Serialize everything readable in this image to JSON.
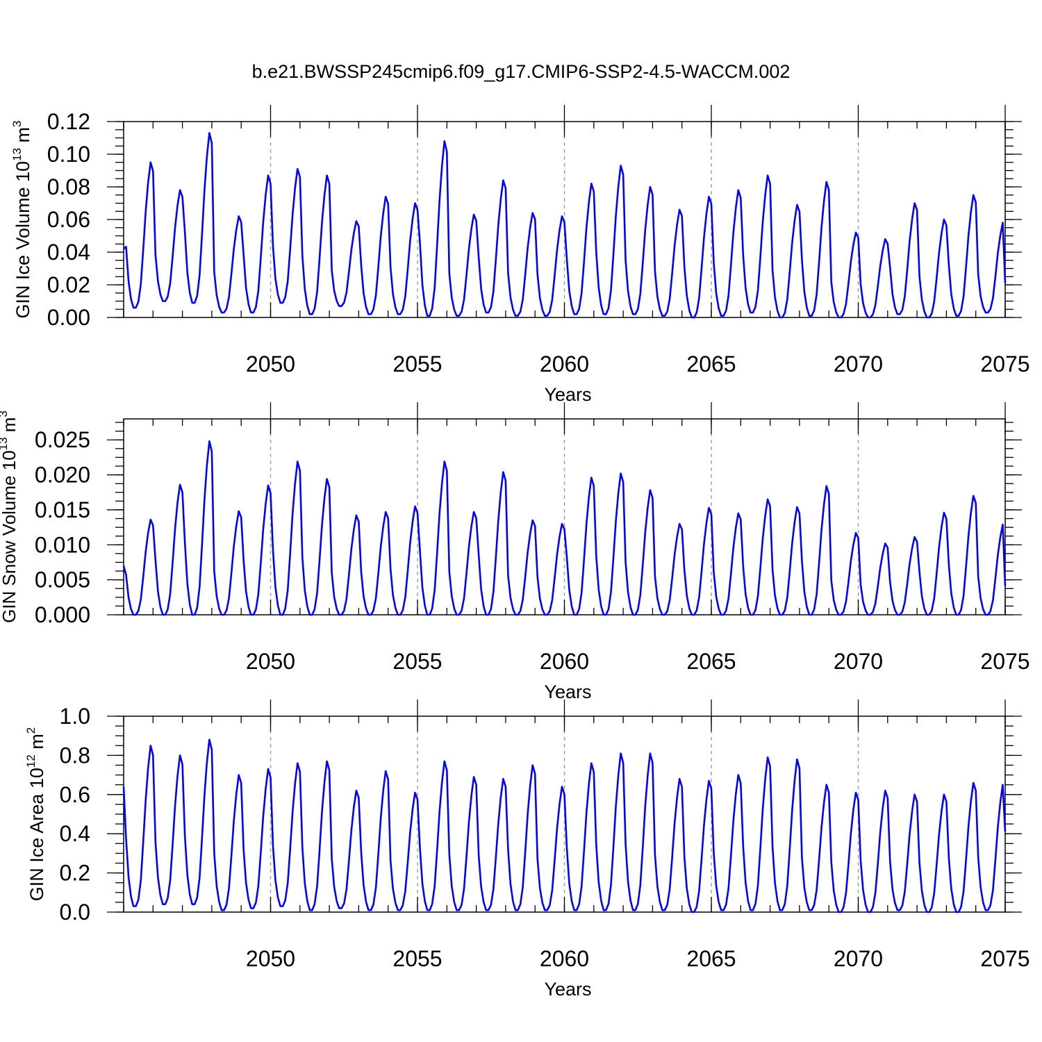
{
  "title": "b.e21.BWSSP245cmip6.f09_g17.CMIP6-SSP2-4.5-WACCM.002",
  "colors": {
    "series": "#0000ff",
    "grid": "#9a9a9a",
    "frame": "#000000"
  },
  "chart_data": [
    {
      "type": "line",
      "ylabel": "GIN Ice Volume 10",
      "ylabel_exp": "13",
      "ylabel_unit": " m",
      "ylabel_unit_exp": "3",
      "xlabel": "Years",
      "xlim": [
        2045.0,
        2075.0
      ],
      "ylim": [
        0.0,
        0.12
      ],
      "xticks": [
        2050,
        2055,
        2060,
        2065,
        2070,
        2075
      ],
      "xtick_labels": [
        "2050",
        "2055",
        "2060",
        "2065",
        "2070",
        "2075"
      ],
      "yticks": [
        0.0,
        0.02,
        0.04,
        0.06,
        0.08,
        0.1,
        0.12
      ],
      "ytick_labels": [
        "0.00",
        "0.02",
        "0.04",
        "0.06",
        "0.08",
        "0.10",
        "0.12"
      ],
      "vgrid": [
        2050,
        2055,
        2060,
        2065,
        2070
      ],
      "series_name": "GIN Ice Volume",
      "annual": [
        {
          "peak": 0.095,
          "min": 0.006
        },
        {
          "peak": 0.078,
          "min": 0.01
        },
        {
          "peak": 0.113,
          "min": 0.009
        },
        {
          "peak": 0.062,
          "min": 0.003
        },
        {
          "peak": 0.087,
          "min": 0.003
        },
        {
          "peak": 0.091,
          "min": 0.009
        },
        {
          "peak": 0.087,
          "min": 0.002
        },
        {
          "peak": 0.059,
          "min": 0.007
        },
        {
          "peak": 0.074,
          "min": 0.002
        },
        {
          "peak": 0.07,
          "min": 0.002
        },
        {
          "peak": 0.108,
          "min": 0.001
        },
        {
          "peak": 0.063,
          "min": 0.001
        },
        {
          "peak": 0.084,
          "min": 0.003
        },
        {
          "peak": 0.064,
          "min": 0.001
        },
        {
          "peak": 0.062,
          "min": 0.001
        },
        {
          "peak": 0.082,
          "min": 0.002
        },
        {
          "peak": 0.093,
          "min": 0.002
        },
        {
          "peak": 0.08,
          "min": 0.002
        },
        {
          "peak": 0.066,
          "min": 0.001
        },
        {
          "peak": 0.074,
          "min": 0.0
        },
        {
          "peak": 0.078,
          "min": 0.001
        },
        {
          "peak": 0.087,
          "min": 0.003
        },
        {
          "peak": 0.069,
          "min": 0.0
        },
        {
          "peak": 0.083,
          "min": 0.001
        },
        {
          "peak": 0.052,
          "min": 0.0
        },
        {
          "peak": 0.048,
          "min": 0.0
        },
        {
          "peak": 0.07,
          "min": 0.002
        },
        {
          "peak": 0.06,
          "min": 0.0
        },
        {
          "peak": 0.075,
          "min": 0.001
        },
        {
          "peak": 0.058,
          "min": 0.003
        }
      ],
      "start_value": 0.042,
      "end_value": 0.021
    },
    {
      "type": "line",
      "ylabel": "GIN Snow Volume 10",
      "ylabel_exp": "13",
      "ylabel_unit": " m",
      "ylabel_unit_exp": "3",
      "xlabel": "Years",
      "xlim": [
        2045.0,
        2075.0
      ],
      "ylim": [
        0.0,
        0.028
      ],
      "xticks": [
        2050,
        2055,
        2060,
        2065,
        2070,
        2075
      ],
      "xtick_labels": [
        "2050",
        "2055",
        "2060",
        "2065",
        "2070",
        "2075"
      ],
      "yticks": [
        0.0,
        0.005,
        0.01,
        0.015,
        0.02,
        0.025
      ],
      "ytick_labels": [
        "0.000",
        "0.005",
        "0.010",
        "0.015",
        "0.020",
        "0.025"
      ],
      "vgrid": [
        2050,
        2055,
        2060,
        2065,
        2070
      ],
      "series_name": "GIN Snow Volume",
      "annual": [
        {
          "peak": 0.0136,
          "min": 0.0
        },
        {
          "peak": 0.0186,
          "min": 0.0
        },
        {
          "peak": 0.0248,
          "min": 0.0
        },
        {
          "peak": 0.0148,
          "min": 0.0
        },
        {
          "peak": 0.0185,
          "min": 0.0
        },
        {
          "peak": 0.0219,
          "min": 0.0
        },
        {
          "peak": 0.0194,
          "min": 0.0
        },
        {
          "peak": 0.0142,
          "min": 0.0
        },
        {
          "peak": 0.0147,
          "min": 0.0
        },
        {
          "peak": 0.0155,
          "min": 0.0
        },
        {
          "peak": 0.0219,
          "min": 0.0
        },
        {
          "peak": 0.0147,
          "min": 0.0
        },
        {
          "peak": 0.0204,
          "min": 0.0
        },
        {
          "peak": 0.0135,
          "min": 0.0
        },
        {
          "peak": 0.013,
          "min": 0.0
        },
        {
          "peak": 0.0196,
          "min": 0.0
        },
        {
          "peak": 0.0202,
          "min": 0.0
        },
        {
          "peak": 0.0178,
          "min": 0.0
        },
        {
          "peak": 0.013,
          "min": 0.0
        },
        {
          "peak": 0.0153,
          "min": 0.0
        },
        {
          "peak": 0.0145,
          "min": 0.0
        },
        {
          "peak": 0.0165,
          "min": 0.0
        },
        {
          "peak": 0.0154,
          "min": 0.0
        },
        {
          "peak": 0.0184,
          "min": 0.0
        },
        {
          "peak": 0.0117,
          "min": 0.0
        },
        {
          "peak": 0.0102,
          "min": 0.0
        },
        {
          "peak": 0.0111,
          "min": 0.0
        },
        {
          "peak": 0.0146,
          "min": 0.0
        },
        {
          "peak": 0.017,
          "min": 0.0
        },
        {
          "peak": 0.0129,
          "min": 0.0
        }
      ],
      "start_value": 0.007,
      "end_value": 0.0041
    },
    {
      "type": "line",
      "ylabel": "GIN Ice Area 10",
      "ylabel_exp": "12",
      "ylabel_unit": " m",
      "ylabel_unit_exp": "2",
      "xlabel": "Years",
      "xlim": [
        2045.0,
        2075.0
      ],
      "ylim": [
        0.0,
        1.0
      ],
      "xticks": [
        2050,
        2055,
        2060,
        2065,
        2070,
        2075
      ],
      "xtick_labels": [
        "2050",
        "2055",
        "2060",
        "2065",
        "2070",
        "2075"
      ],
      "yticks": [
        0.0,
        0.2,
        0.4,
        0.6,
        0.8,
        1.0
      ],
      "ytick_labels": [
        "0.0",
        "0.2",
        "0.4",
        "0.6",
        "0.8",
        "1.0"
      ],
      "vgrid": [
        2050,
        2055,
        2060,
        2065,
        2070
      ],
      "series_name": "GIN Ice Area",
      "annual": [
        {
          "peak": 0.85,
          "min": 0.03
        },
        {
          "peak": 0.8,
          "min": 0.04
        },
        {
          "peak": 0.88,
          "min": 0.04
        },
        {
          "peak": 0.7,
          "min": 0.01
        },
        {
          "peak": 0.73,
          "min": 0.02
        },
        {
          "peak": 0.76,
          "min": 0.03
        },
        {
          "peak": 0.77,
          "min": 0.01
        },
        {
          "peak": 0.62,
          "min": 0.02
        },
        {
          "peak": 0.72,
          "min": 0.01
        },
        {
          "peak": 0.61,
          "min": 0.01
        },
        {
          "peak": 0.77,
          "min": 0.01
        },
        {
          "peak": 0.69,
          "min": 0.01
        },
        {
          "peak": 0.68,
          "min": 0.01
        },
        {
          "peak": 0.75,
          "min": 0.01
        },
        {
          "peak": 0.64,
          "min": 0.01
        },
        {
          "peak": 0.76,
          "min": 0.01
        },
        {
          "peak": 0.81,
          "min": 0.01
        },
        {
          "peak": 0.81,
          "min": 0.01
        },
        {
          "peak": 0.68,
          "min": 0.01
        },
        {
          "peak": 0.67,
          "min": 0.0
        },
        {
          "peak": 0.7,
          "min": 0.01
        },
        {
          "peak": 0.79,
          "min": 0.01
        },
        {
          "peak": 0.78,
          "min": 0.01
        },
        {
          "peak": 0.65,
          "min": 0.01
        },
        {
          "peak": 0.61,
          "min": 0.0
        },
        {
          "peak": 0.62,
          "min": 0.0
        },
        {
          "peak": 0.6,
          "min": 0.01
        },
        {
          "peak": 0.6,
          "min": 0.0
        },
        {
          "peak": 0.66,
          "min": 0.0
        },
        {
          "peak": 0.65,
          "min": 0.01
        }
      ],
      "start_value": 0.64,
      "end_value": 0.41
    }
  ]
}
